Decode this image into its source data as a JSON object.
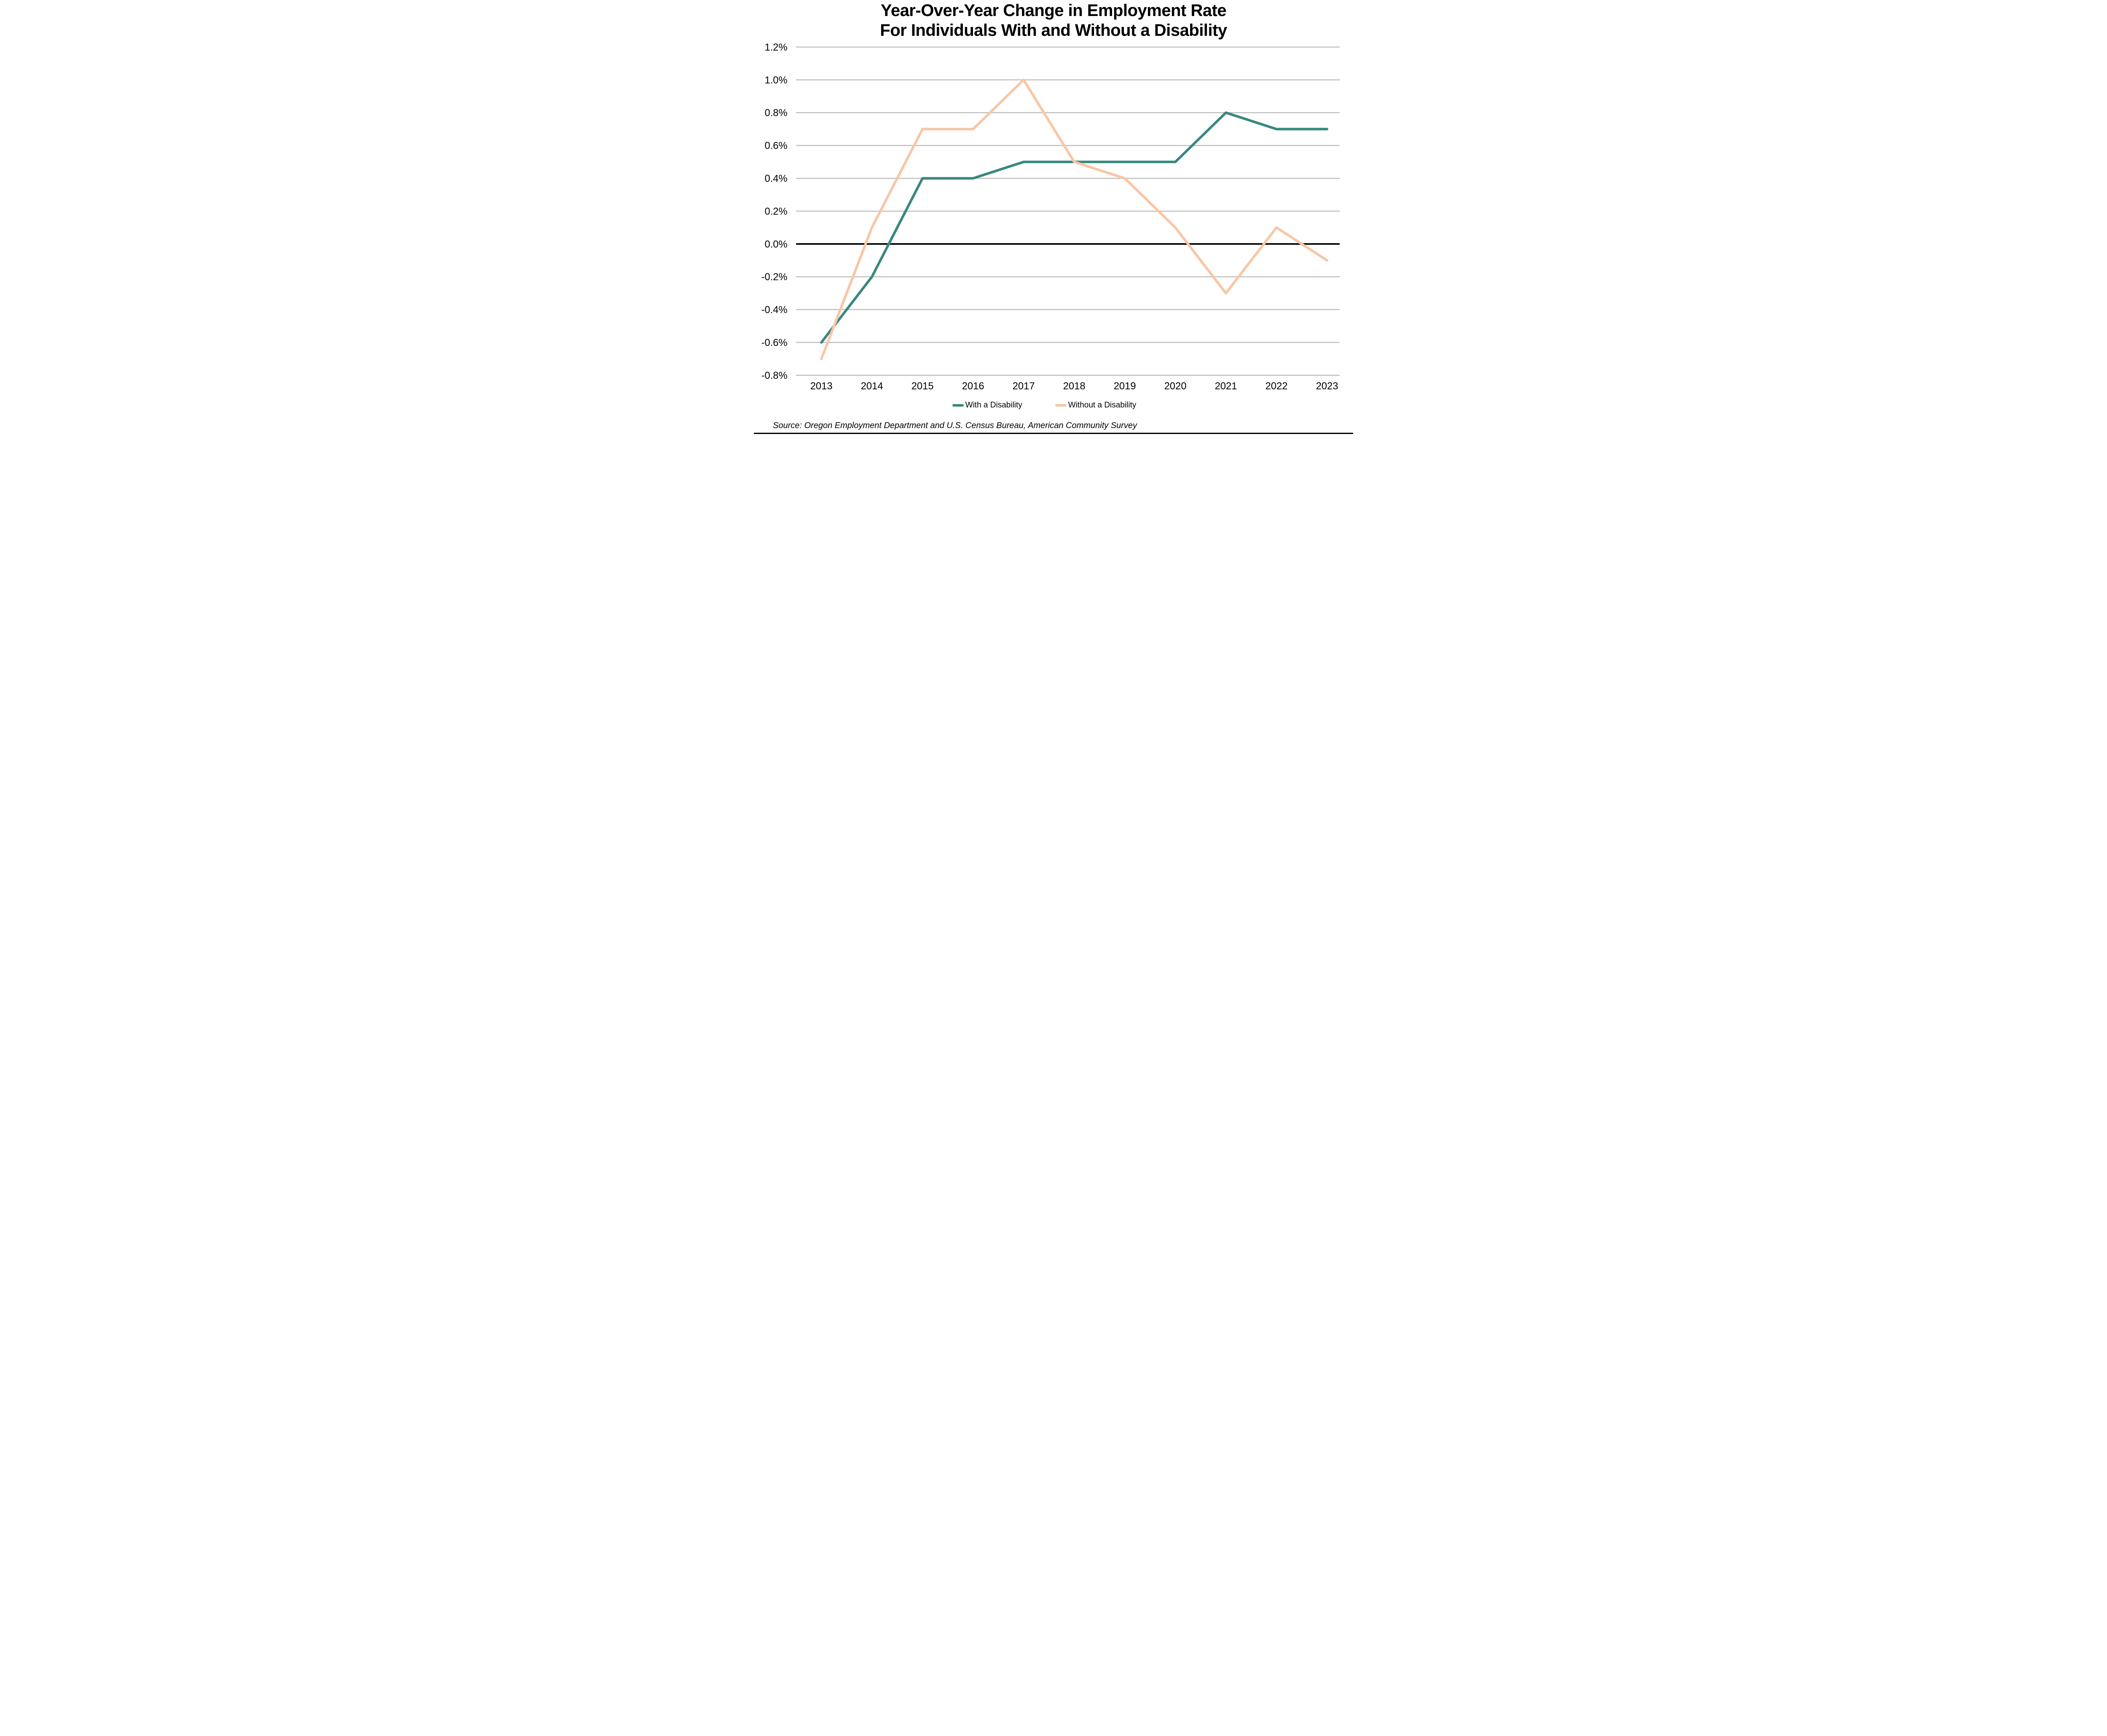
{
  "chart_data": {
    "type": "line",
    "title": "Year-Over-Year Change in Employment Rate For Individuals With and Without a Disability",
    "title_lines": [
      "Year-Over-Year Change in Employment Rate",
      "For Individuals With and Without a Disability"
    ],
    "categories": [
      "2013",
      "2014",
      "2015",
      "2016",
      "2017",
      "2018",
      "2019",
      "2020",
      "2021",
      "2022",
      "2023"
    ],
    "series": [
      {
        "name": "With a Disability",
        "color": "#38897C",
        "values": [
          -0.6,
          -0.2,
          0.4,
          0.4,
          0.5,
          0.5,
          0.5,
          0.5,
          0.8,
          0.7,
          0.7
        ]
      },
      {
        "name": "Without a Disability",
        "color": "#F8C6A6",
        "values": [
          -0.7,
          0.1,
          0.7,
          0.7,
          1.0,
          0.5,
          0.4,
          0.1,
          -0.3,
          0.1,
          -0.1
        ]
      }
    ],
    "unit": "%",
    "xlabel": "",
    "ylabel": "",
    "ylim": [
      -0.8,
      1.2
    ],
    "ytick_values": [
      1.2,
      1.0,
      0.8,
      0.6,
      0.4,
      0.2,
      0.0,
      -0.2,
      -0.4,
      -0.6,
      -0.8
    ],
    "ytick_labels": [
      "1.2%",
      "1.0%",
      "0.8%",
      "0.6%",
      "0.4%",
      "0.2%",
      "0.0%",
      "-0.2%",
      "-0.4%",
      "-0.6%",
      "-0.8%"
    ],
    "grid": true,
    "gridline_color": "#BFBFBF",
    "zero_line_color": "#000000",
    "axis_text_color": "#000000",
    "legend_position": "bottom"
  },
  "source_note": "Source: Oregon Employment Department and U.S. Census Bureau, American Community Survey",
  "page": {
    "background": "#FFFFFF",
    "bottom_bar_color": "#000000"
  }
}
